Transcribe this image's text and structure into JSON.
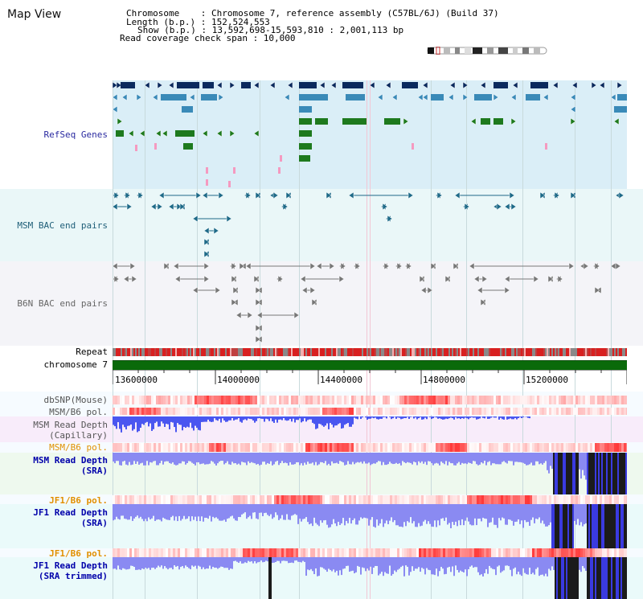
{
  "window": {
    "title": "Map View"
  },
  "header": {
    "chromosome_line": "Chromosome    : Chromosome 7, reference assembly (C57BL/6J) (Build 37)",
    "length_line": "Length (b.p.) : 152,524,553",
    "show_line": "Show (b.p.) : 13,592,698-15,593,810 : 2,001,113 bp",
    "coverage_line": "Read coverage check span : 10,000"
  },
  "tracks": {
    "refseq": "RefSeq Genes",
    "msm_bac": "MSM BAC end pairs",
    "b6n_bac": "B6N BAC end pairs",
    "repeat": "Repeat",
    "chromosome": "chromosome 7",
    "dbsnp": "dbSNP(Mouse)",
    "msm_b6_pol": "MSM/B6 pol.",
    "msm_read_depth_cap_1": "MSM Read Depth",
    "msm_read_depth_cap_2": "(Capillary)",
    "msm_b6_pol_2": "MSM/B6 pol.",
    "msm_read_depth_sra_1": "MSM Read Depth",
    "msm_read_depth_sra_2": "(SRA)",
    "jf1_b6_pol": "JF1/B6 pol.",
    "jf1_read_depth_1": "JF1 Read Depth",
    "jf1_read_depth_2": "(SRA)",
    "jf1_b6_pol_2": "JF1/B6 pol.",
    "jf1_read_depth_trim_1": "JF1 Read Depth",
    "jf1_read_depth_trim_2": "(SRA trimmed)"
  },
  "ruler": {
    "ticks": [
      "13600000",
      "14000000",
      "14400000",
      "14800000",
      "15200000"
    ]
  },
  "colors": {
    "refseq_label": "#2a2aa0",
    "msm_label": "#1e5e78",
    "b6n_label": "#666666",
    "orange_label": "#e09000",
    "blue_label": "#0000aa",
    "gene_dark": "#0b2a5e",
    "gene_mid": "#3a8ab8",
    "gene_green": "#1e7a1e",
    "chrom_green": "#0a6a0a"
  }
}
